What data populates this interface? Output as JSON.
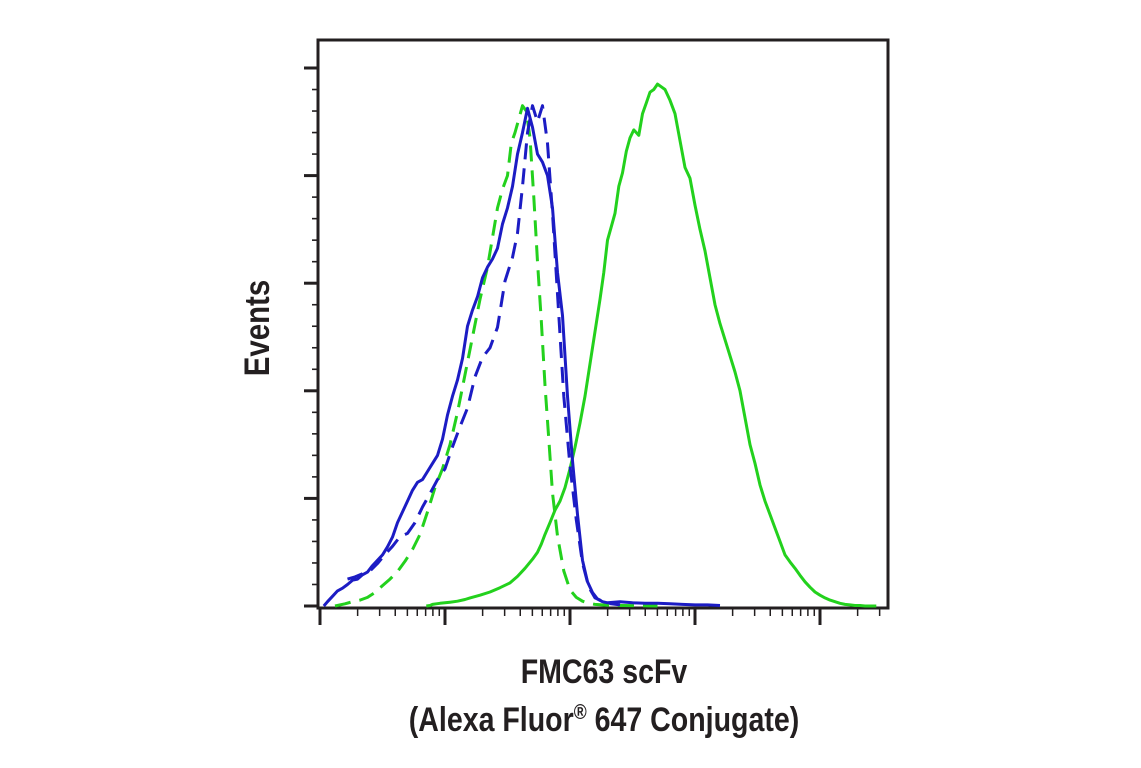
{
  "chart_data": {
    "type": "line",
    "title": "",
    "xlabel_line1": "FMC63 scFv",
    "xlabel_line2_main": "(Alexa Fluor",
    "xlabel_line2_reg": "®",
    "xlabel_line2_end": " 647 Conjugate)",
    "ylabel": "Events",
    "x_scale": "log",
    "x_decades": 4.5,
    "ylim": [
      0,
      100
    ],
    "x_tick_labels": [],
    "y_tick_labels": [],
    "grid": false,
    "legend": "none",
    "series": [
      {
        "color": "#23d11d",
        "dash": "solid",
        "x": [
          0.85,
          0.88,
          0.9,
          0.93,
          0.96,
          1.0,
          1.04,
          1.1,
          1.16,
          1.2,
          1.28,
          1.36,
          1.44,
          1.52,
          1.58,
          1.64,
          1.7,
          1.74,
          1.77,
          1.8,
          1.84,
          1.88,
          1.92,
          1.96,
          2.0,
          2.04,
          2.08,
          2.12,
          2.16,
          2.2,
          2.24,
          2.27,
          2.3,
          2.33,
          2.36,
          2.39,
          2.42,
          2.45,
          2.48,
          2.51,
          2.55,
          2.58,
          2.61,
          2.64,
          2.67,
          2.7,
          2.73,
          2.76,
          2.8,
          2.84,
          2.88,
          2.92,
          2.96,
          3.0,
          3.04,
          3.08,
          3.12,
          3.16,
          3.2,
          3.24,
          3.28,
          3.32,
          3.36,
          3.4,
          3.44,
          3.48,
          3.52,
          3.56,
          3.6,
          3.64,
          3.68,
          3.72,
          3.76,
          3.8,
          3.84,
          3.88,
          3.92,
          3.96,
          4.0,
          4.04,
          4.08,
          4.12,
          4.16,
          4.2,
          4.24,
          4.28,
          4.32,
          4.36,
          4.4,
          4.45
        ],
        "values": [
          0.0,
          0.1,
          0.3,
          0.4,
          0.5,
          0.6,
          0.7,
          0.9,
          1.2,
          1.5,
          2.0,
          2.6,
          3.4,
          4.3,
          5.5,
          7.0,
          8.7,
          10.0,
          11.5,
          13.3,
          15.5,
          17.8,
          19.5,
          22.0,
          25.5,
          29.5,
          34.0,
          39.0,
          45.0,
          51.0,
          57.0,
          62.0,
          68.0,
          70.5,
          73.0,
          78.0,
          80.5,
          84.5,
          87.0,
          88.5,
          87.5,
          91.5,
          93.5,
          95.5,
          96.0,
          97.0,
          96.5,
          96.0,
          94.0,
          91.5,
          86.5,
          81.5,
          79.5,
          74.5,
          70.0,
          66.0,
          61.0,
          56.0,
          52.5,
          49.5,
          46.5,
          43.5,
          40.0,
          35.0,
          30.0,
          26.5,
          22.5,
          19.5,
          17.0,
          14.5,
          12.0,
          9.5,
          8.2,
          7.0,
          5.7,
          4.5,
          3.5,
          2.6,
          2.0,
          1.5,
          1.1,
          0.8,
          0.5,
          0.3,
          0.2,
          0.1,
          0.1,
          0.0,
          0.0,
          0.0
        ]
      },
      {
        "color": "#23d11d",
        "dash": "dashed",
        "x": [
          0.12,
          0.2,
          0.26,
          0.32,
          0.38,
          0.44,
          0.5,
          0.56,
          0.62,
          0.68,
          0.74,
          0.8,
          0.86,
          0.92,
          0.98,
          1.04,
          1.1,
          1.16,
          1.22,
          1.28,
          1.34,
          1.38,
          1.42,
          1.46,
          1.5,
          1.53,
          1.56,
          1.59,
          1.62,
          1.65,
          1.68,
          1.71,
          1.74,
          1.77,
          1.8,
          1.83,
          1.86,
          1.9,
          1.95,
          2.0,
          2.05,
          2.1,
          2.15,
          2.2,
          2.3,
          2.4,
          2.55,
          2.7
        ],
        "values": [
          0.0,
          0.4,
          0.8,
          1.1,
          1.6,
          2.5,
          3.8,
          5.0,
          6.4,
          8.3,
          10.5,
          13.3,
          17.5,
          22.0,
          25.5,
          30.0,
          36.0,
          43.0,
          50.0,
          57.0,
          63.0,
          68.5,
          74.0,
          77.5,
          80.0,
          86.0,
          88.0,
          90.5,
          93.0,
          92.0,
          87.0,
          76.0,
          64.0,
          53.0,
          41.0,
          31.0,
          21.0,
          13.0,
          6.5,
          3.0,
          1.6,
          0.9,
          0.5,
          0.3,
          0.15,
          0.1,
          0.05,
          0.0
        ]
      },
      {
        "color": "#1c1cc4",
        "dash": "solid",
        "x": [
          0.03,
          0.06,
          0.1,
          0.14,
          0.18,
          0.22,
          0.26,
          0.3,
          0.34,
          0.38,
          0.42,
          0.46,
          0.5,
          0.54,
          0.58,
          0.62,
          0.66,
          0.7,
          0.74,
          0.78,
          0.82,
          0.86,
          0.9,
          0.94,
          0.98,
          1.02,
          1.06,
          1.1,
          1.14,
          1.18,
          1.22,
          1.26,
          1.3,
          1.34,
          1.38,
          1.42,
          1.46,
          1.5,
          1.54,
          1.58,
          1.62,
          1.66,
          1.7,
          1.74,
          1.78,
          1.82,
          1.86,
          1.9,
          1.94,
          1.98,
          2.02,
          2.06,
          2.1,
          2.14,
          2.18,
          2.22,
          2.26,
          2.3,
          2.4,
          2.5,
          2.6,
          2.7,
          2.8,
          2.9,
          3.0,
          3.1,
          3.2
        ],
        "values": [
          0.0,
          0.8,
          1.8,
          2.8,
          3.3,
          4.0,
          4.8,
          5.0,
          5.8,
          6.3,
          7.5,
          8.5,
          9.5,
          11.0,
          12.8,
          15.5,
          17.5,
          19.5,
          21.5,
          23.0,
          23.5,
          25.0,
          26.5,
          28.0,
          31.0,
          35.5,
          39.0,
          42.0,
          46.0,
          52.0,
          55.0,
          57.5,
          61.0,
          63.0,
          64.5,
          66.5,
          71.0,
          74.0,
          78.0,
          84.0,
          88.0,
          92.5,
          89.0,
          84.0,
          82.5,
          80.0,
          74.0,
          62.0,
          54.0,
          39.0,
          27.0,
          17.0,
          8.5,
          4.5,
          2.5,
          1.3,
          0.8,
          0.6,
          0.8,
          0.6,
          0.5,
          0.5,
          0.4,
          0.3,
          0.2,
          0.2,
          0.1
        ]
      },
      {
        "color": "#1c1cc4",
        "dash": "dashed",
        "x": [
          0.22,
          0.28,
          0.34,
          0.4,
          0.46,
          0.52,
          0.58,
          0.64,
          0.7,
          0.76,
          0.82,
          0.88,
          0.94,
          1.0,
          1.06,
          1.12,
          1.18,
          1.24,
          1.3,
          1.36,
          1.42,
          1.48,
          1.54,
          1.58,
          1.62,
          1.66,
          1.7,
          1.74,
          1.78,
          1.82,
          1.86,
          1.9,
          1.95,
          2.0,
          2.05,
          2.1,
          2.15,
          2.2,
          2.3,
          2.4
        ],
        "values": [
          5.0,
          5.4,
          6.0,
          6.5,
          7.9,
          9.6,
          11.1,
          12.9,
          13.5,
          15.5,
          18.4,
          20.9,
          23.5,
          25.5,
          29.6,
          33.3,
          36.8,
          42.6,
          46.2,
          48.0,
          51.8,
          60.4,
          64.8,
          69.3,
          78.0,
          88.0,
          93.0,
          90.0,
          93.0,
          86.0,
          73.0,
          58.0,
          39.0,
          26.0,
          16.0,
          8.0,
          3.5,
          1.5,
          0.5,
          0.2
        ]
      }
    ]
  }
}
